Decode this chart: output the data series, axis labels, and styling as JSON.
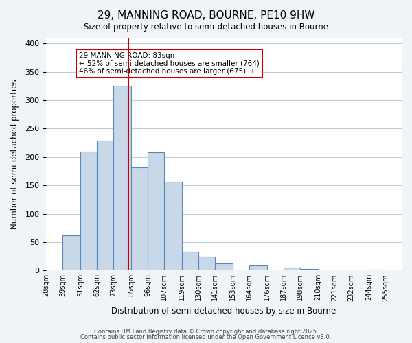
{
  "title_line1": "29, MANNING ROAD, BOURNE, PE10 9HW",
  "title_line2": "Size of property relative to semi-detached houses in Bourne",
  "xlabel": "Distribution of semi-detached houses by size in Bourne",
  "ylabel": "Number of semi-detached properties",
  "bin_labels": [
    "28sqm",
    "39sqm",
    "51sqm",
    "62sqm",
    "73sqm",
    "85sqm",
    "96sqm",
    "107sqm",
    "119sqm",
    "130sqm",
    "141sqm",
    "153sqm",
    "164sqm",
    "176sqm",
    "187sqm",
    "198sqm",
    "210sqm",
    "221sqm",
    "232sqm",
    "244sqm",
    "255sqm"
  ],
  "bin_edges": [
    28,
    39,
    51,
    62,
    73,
    85,
    96,
    107,
    119,
    130,
    141,
    153,
    164,
    176,
    187,
    198,
    210,
    221,
    232,
    244,
    255
  ],
  "bar_heights": [
    0,
    62,
    209,
    229,
    325,
    182,
    208,
    156,
    33,
    25,
    13,
    0,
    9,
    0,
    5,
    3,
    0,
    0,
    0,
    2
  ],
  "bar_color": "#c8d8e8",
  "bar_edge_color": "#5588bb",
  "property_size": 83,
  "vline_color": "#cc0000",
  "annotation_text": "29 MANNING ROAD: 83sqm\n← 52% of semi-detached houses are smaller (764)\n46% of semi-detached houses are larger (675) →",
  "annotation_box_color": "#ffffff",
  "annotation_box_edge": "#cc0000",
  "ylim": [
    0,
    410
  ],
  "yticks": [
    0,
    50,
    100,
    150,
    200,
    250,
    300,
    350,
    400
  ],
  "footer_line1": "Contains HM Land Registry data © Crown copyright and database right 2025.",
  "footer_line2": "Contains public sector information licensed under the Open Government Licence v3.0.",
  "bg_color": "#f0f4f8",
  "plot_bg_color": "#ffffff"
}
